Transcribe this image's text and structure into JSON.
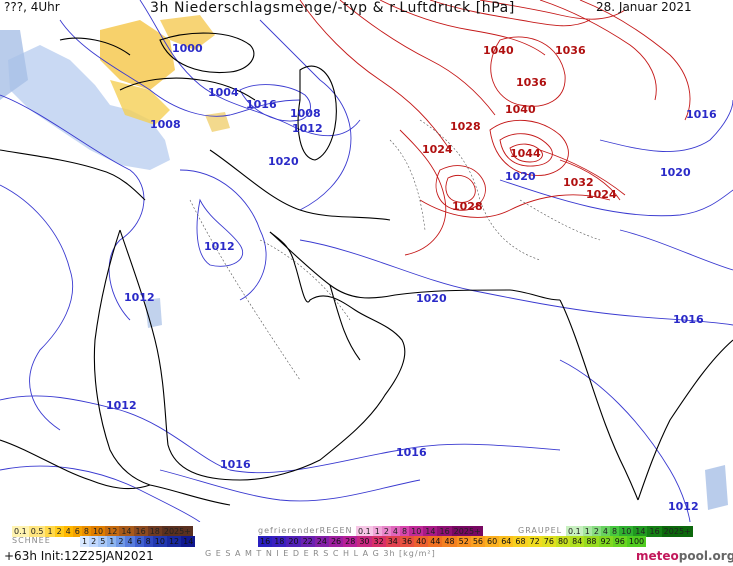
{
  "header": {
    "left": "???, 4Uhr",
    "title": "3h Niederschlagsmenge/-typ & r.Luftdruck [hPa]",
    "date": "28. Januar 2021"
  },
  "isobar_labels": [
    {
      "text": "1000",
      "kind": "lo"
    },
    {
      "text": "1004",
      "kind": "lo"
    },
    {
      "text": "1008",
      "kind": "lo"
    },
    {
      "text": "1016",
      "kind": "lo"
    },
    {
      "text": "1008",
      "kind": "lo"
    },
    {
      "text": "1012",
      "kind": "lo"
    },
    {
      "text": "1020",
      "kind": "lo"
    },
    {
      "text": "1040",
      "kind": "hi"
    },
    {
      "text": "1036",
      "kind": "hi"
    },
    {
      "text": "1036",
      "kind": "hi"
    },
    {
      "text": "1040",
      "kind": "hi"
    },
    {
      "text": "1028",
      "kind": "hi"
    },
    {
      "text": "1024",
      "kind": "hi"
    },
    {
      "text": "1044",
      "kind": "hi"
    },
    {
      "text": "1020",
      "kind": "lo"
    },
    {
      "text": "1032",
      "kind": "hi"
    },
    {
      "text": "1024",
      "kind": "hi"
    },
    {
      "text": "1028",
      "kind": "hi"
    },
    {
      "text": "1016",
      "kind": "lo"
    },
    {
      "text": "1020",
      "kind": "lo"
    },
    {
      "text": "1012",
      "kind": "lo"
    },
    {
      "text": "1012",
      "kind": "lo"
    },
    {
      "text": "1020",
      "kind": "lo"
    },
    {
      "text": "1016",
      "kind": "lo"
    },
    {
      "text": "1012",
      "kind": "lo"
    },
    {
      "text": "1016",
      "kind": "lo"
    },
    {
      "text": "1016",
      "kind": "lo"
    },
    {
      "text": "1012",
      "kind": "lo"
    }
  ],
  "legend": {
    "rain_values": [
      "0.1",
      "0.5",
      "1",
      "2",
      "4",
      "6",
      "8",
      "10",
      "12",
      "14",
      "16",
      "18",
      "2025+"
    ],
    "freezing_rain_label": "gefrierenderREGEN",
    "freezing_rain_values": [
      "0.1",
      "1",
      "2",
      "4",
      "8",
      "10",
      "14",
      "16",
      "2025+"
    ],
    "graupel_label": "GRAUPEL",
    "graupel_values": [
      "0.1",
      "1",
      "2",
      "4",
      "8",
      "10",
      "14",
      "16",
      "2025+"
    ],
    "snow_label": "SCHNEE",
    "snow_values": [
      "1",
      "2",
      "5",
      "1",
      "2",
      "4",
      "6",
      "8",
      "10",
      "12",
      "14"
    ],
    "total_values": [
      "16",
      "18",
      "20",
      "22",
      "24",
      "26",
      "28",
      "30",
      "32",
      "34",
      "36",
      "40",
      "44",
      "48",
      "52",
      "56",
      "60",
      "64",
      "68",
      "72",
      "76",
      "80",
      "84",
      "88",
      "92",
      "96",
      "100"
    ],
    "total_label": "G E S A M T N I E D E R S C H L A G   3h   [kg/m²]"
  },
  "footer": {
    "run": "+63h Init:12Z25JAN2021",
    "logo_m": "meteo",
    "logo_o": "pool",
    "logo_suffix": ".org"
  },
  "colors": {
    "low_isobar": "#3a3ad0",
    "high_isobar": "#c41818",
    "coast": "#000000",
    "rain": "#f2b400",
    "snow": "#8aa8dc"
  }
}
